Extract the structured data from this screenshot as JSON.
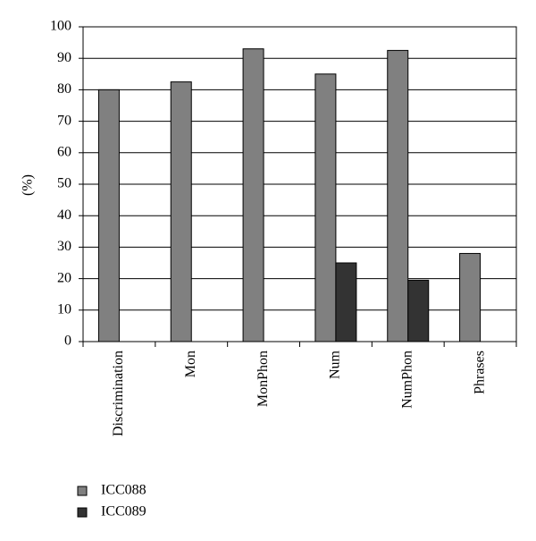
{
  "chart_data": {
    "type": "bar",
    "y_label": "(%)",
    "categories": [
      "Discrimination",
      "Mon",
      "MonPhon",
      "Num",
      "NumPhon",
      "Phrases"
    ],
    "series": [
      {
        "name": "ICC088",
        "color": "#808080",
        "values": [
          80,
          82.5,
          93,
          85,
          92.5,
          28
        ]
      },
      {
        "name": "ICC089",
        "color": "#333333",
        "values": [
          null,
          null,
          null,
          25,
          19.5,
          null
        ]
      }
    ],
    "ylim": [
      0,
      100
    ],
    "yticks": [
      0,
      10,
      20,
      30,
      40,
      50,
      60,
      70,
      80,
      90,
      100
    ],
    "grid": true
  }
}
